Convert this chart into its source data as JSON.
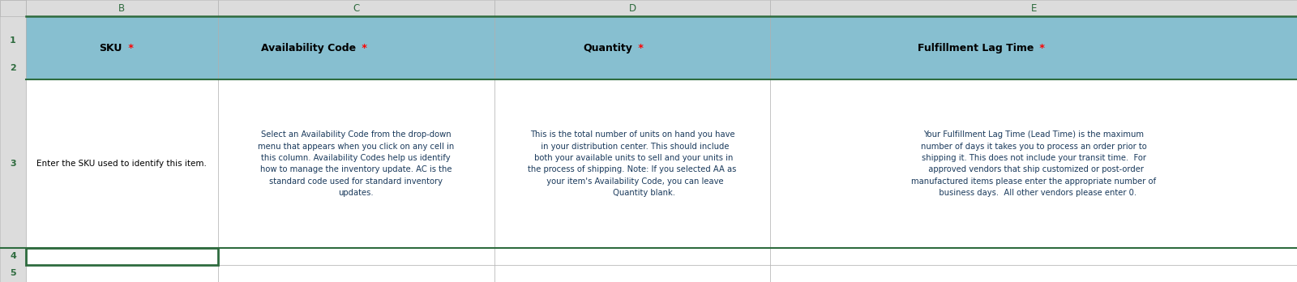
{
  "col_labels": [
    "B",
    "C",
    "D",
    "E"
  ],
  "col_label_color": "#2E6B3E",
  "col_header_bg": "#87BFD0",
  "row_label_color": "#2E6B3E",
  "header_main_texts": [
    "SKU",
    "Availability Code",
    "Quantity",
    "Fulfillment Lag Time"
  ],
  "header_star_color": "#FF0000",
  "body_text_b": "Enter the SKU used to identify this item.",
  "body_text_c": "Select an Availability Code from the drop-down\nmenu that appears when you click on any cell in\nthis column. Availability Codes help us identify\nhow to manage the inventory update. AC is the\nstandard code used for standard inventory\nupdates.",
  "body_text_d": "This is the total number of units on hand you have\n  in your distribution center. This should include\n both your available units to sell and your units in\nthe process of shipping. Note: If you selected AA as\n  your item's Availability Code, you can leave\n         Quantity blank.",
  "body_text_e": "Your Fulfillment Lag Time (Lead Time) is the maximum\nnumber of days it takes you to process an order prior to\nshipping it. This does not include your transit time.  For\n  approved vendors that ship customized or post-order\nmanufactured items please enter the appropriate number of\n   business days.  All other vendors please enter 0.",
  "grid_line_color": "#C0C0C0",
  "dark_border_color": "#2E6B3E",
  "header_col_bg": "#DCDCDC",
  "white_bg": "#FFFFFF",
  "selected_cell_border": "#2E6B3E",
  "body_text_color": "#1A3A5C",
  "body_text_b_color": "#000000",
  "fig_width": 16.0,
  "fig_height": 3.48,
  "dpi": 100
}
